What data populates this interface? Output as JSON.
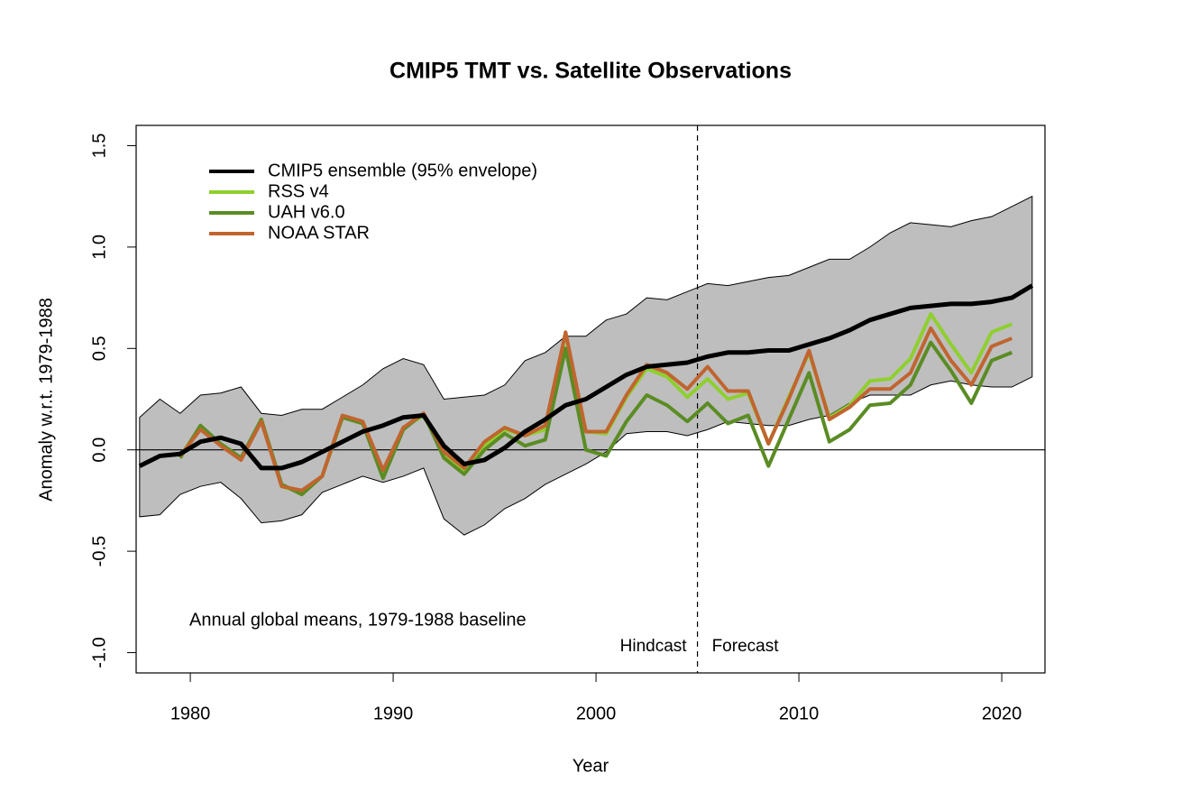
{
  "chart_data": {
    "type": "line",
    "title": "CMIP5 TMT vs. Satellite Observations",
    "x_label": "Year",
    "y_label": "Anomaly w.r.t. 1979-1988",
    "note": "Annual global means, 1979-1988 baseline",
    "hindcast_label": "Hindcast",
    "forecast_label": "Forecast",
    "vline": 2005,
    "hline": 0,
    "legend": "topleft",
    "xlim": [
      1977.33,
      2022.13
    ],
    "ylim": [
      -1.1,
      1.6
    ],
    "xticks": [
      1980,
      1990,
      2000,
      2010,
      2020
    ],
    "yticks": [
      {
        "value": -1,
        "label": "-1.0"
      },
      -0.5,
      {
        "value": 0,
        "label": "0.0"
      },
      0.5,
      {
        "value": 1,
        "label": "1.0"
      },
      1.5
    ],
    "x": [
      1977.5,
      1978.5,
      1979.5,
      1980.5,
      1981.5,
      1982.5,
      1983.5,
      1984.5,
      1985.5,
      1986.5,
      1987.5,
      1988.5,
      1989.5,
      1990.5,
      1991.5,
      1992.5,
      1993.5,
      1994.5,
      1995.5,
      1996.5,
      1997.5,
      1998.5,
      1999.5,
      2000.5,
      2001.5,
      2002.5,
      2003.5,
      2004.5,
      2005.5,
      2006.5,
      2007.5,
      2008.5,
      2009.5,
      2010.5,
      2011.5,
      2012.5,
      2013.5,
      2014.5,
      2015.5,
      2016.5,
      2017.5,
      2018.5,
      2019.5,
      2020.5,
      2021.5
    ],
    "band": {
      "color": "#bebebe",
      "upper": [
        0.16,
        0.25,
        0.18,
        0.27,
        0.28,
        0.31,
        0.18,
        0.17,
        0.2,
        0.2,
        0.26,
        0.32,
        0.4,
        0.45,
        0.42,
        0.25,
        0.26,
        0.27,
        0.32,
        0.44,
        0.48,
        0.56,
        0.56,
        0.64,
        0.67,
        0.75,
        0.74,
        0.78,
        0.82,
        0.81,
        0.83,
        0.85,
        0.86,
        0.9,
        0.94,
        0.94,
        1.0,
        1.07,
        1.12,
        1.11,
        1.1,
        1.13,
        1.15,
        1.2,
        1.25
      ],
      "lower": [
        -0.33,
        -0.32,
        -0.22,
        -0.18,
        -0.16,
        -0.24,
        -0.36,
        -0.35,
        -0.32,
        -0.21,
        -0.17,
        -0.13,
        -0.16,
        -0.13,
        -0.09,
        -0.34,
        -0.42,
        -0.37,
        -0.29,
        -0.24,
        -0.17,
        -0.12,
        -0.07,
        -0.01,
        0.08,
        0.09,
        0.09,
        0.07,
        0.1,
        0.14,
        0.13,
        0.12,
        0.12,
        0.15,
        0.17,
        0.23,
        0.27,
        0.27,
        0.27,
        0.32,
        0.34,
        0.32,
        0.31,
        0.31,
        0.36
      ]
    },
    "series": [
      {
        "name": "CMIP5 ensemble (95% envelope)",
        "color": "#000000",
        "values": [
          -0.08,
          -0.03,
          -0.02,
          0.04,
          0.06,
          0.03,
          -0.09,
          -0.09,
          -0.06,
          -0.01,
          0.04,
          0.09,
          0.12,
          0.16,
          0.17,
          0.02,
          -0.07,
          -0.05,
          0.01,
          0.09,
          0.15,
          0.22,
          0.25,
          0.31,
          0.37,
          0.41,
          0.42,
          0.43,
          0.46,
          0.48,
          0.48,
          0.49,
          0.49,
          0.52,
          0.55,
          0.59,
          0.64,
          0.67,
          0.7,
          0.71,
          0.72,
          0.72,
          0.73,
          0.75,
          0.81
        ]
      },
      {
        "name": "RSS v4",
        "color": "#8fcf2f",
        "values": [
          null,
          null,
          -0.03,
          0.11,
          0.03,
          -0.04,
          0.15,
          -0.18,
          -0.21,
          -0.13,
          0.16,
          0.13,
          -0.12,
          0.11,
          0.17,
          -0.02,
          -0.1,
          0.02,
          0.1,
          0.07,
          0.1,
          0.57,
          0.09,
          0.08,
          0.26,
          0.4,
          0.36,
          0.26,
          0.35,
          0.25,
          0.28,
          0.03,
          0.26,
          0.48,
          0.16,
          0.22,
          0.34,
          0.35,
          0.45,
          0.67,
          0.52,
          0.38,
          0.58,
          0.62,
          null
        ]
      },
      {
        "name": "UAH v6.0",
        "color": "#5b8c24",
        "values": [
          null,
          null,
          -0.04,
          0.12,
          0.03,
          -0.04,
          0.15,
          -0.17,
          -0.22,
          -0.13,
          0.16,
          0.13,
          -0.14,
          0.1,
          0.18,
          -0.04,
          -0.12,
          0.0,
          0.08,
          0.02,
          0.05,
          0.5,
          0.0,
          -0.03,
          0.14,
          0.27,
          0.22,
          0.14,
          0.23,
          0.13,
          0.17,
          -0.08,
          0.15,
          0.38,
          0.04,
          0.1,
          0.22,
          0.23,
          0.32,
          0.53,
          0.39,
          0.23,
          0.44,
          0.48,
          null
        ]
      },
      {
        "name": "NOAA STAR",
        "color": "#c0652f",
        "values": [
          null,
          null,
          -0.03,
          0.1,
          0.02,
          -0.05,
          0.14,
          -0.18,
          -0.2,
          -0.13,
          0.17,
          0.14,
          -0.1,
          0.11,
          0.18,
          -0.01,
          -0.09,
          0.04,
          0.11,
          0.07,
          0.12,
          0.58,
          0.09,
          0.09,
          0.27,
          0.42,
          0.38,
          0.3,
          0.41,
          0.29,
          0.29,
          0.03,
          0.25,
          0.49,
          0.15,
          0.21,
          0.3,
          0.3,
          0.38,
          0.6,
          0.44,
          0.32,
          0.51,
          0.55,
          null
        ]
      }
    ]
  }
}
